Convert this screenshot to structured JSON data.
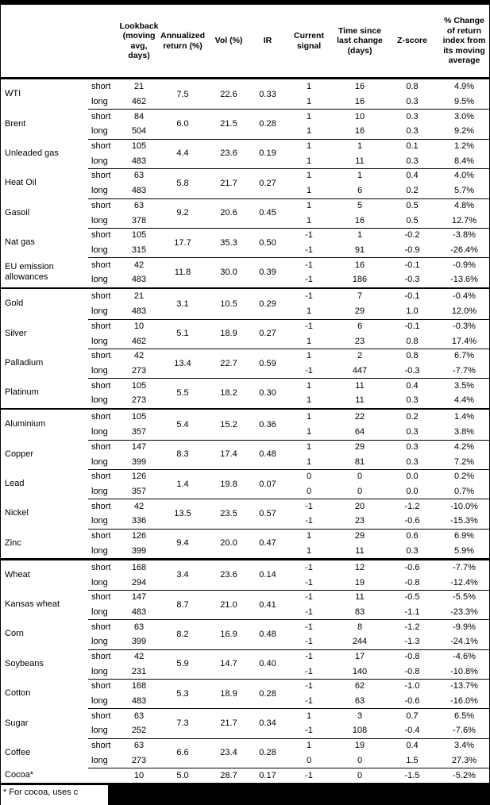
{
  "header": {
    "columns": [
      "Lookback (moving avg, days)",
      "Annualized return (%)",
      "Vol (%)",
      "IR",
      "Current signal",
      "Time since last change (days)",
      "Z-score",
      "% Change of return index from its moving average"
    ]
  },
  "table": {
    "groups": [
      {
        "commodities": [
          {
            "name": "WTI",
            "annualized": "7.5",
            "vol": "22.6",
            "ir": "0.33",
            "rows": [
              {
                "label": "short",
                "lookback": "21",
                "signal": "1",
                "days": "16",
                "zscore": "0.8",
                "pct_change": "4.9%"
              },
              {
                "label": "long",
                "lookback": "462",
                "signal": "1",
                "days": "16",
                "zscore": "0.3",
                "pct_change": "9.5%"
              }
            ]
          },
          {
            "name": "Brent",
            "annualized": "6.0",
            "vol": "21.5",
            "ir": "0.28",
            "rows": [
              {
                "label": "short",
                "lookback": "84",
                "signal": "1",
                "days": "10",
                "zscore": "0.3",
                "pct_change": "3.0%"
              },
              {
                "label": "long",
                "lookback": "504",
                "signal": "1",
                "days": "16",
                "zscore": "0.3",
                "pct_change": "9.2%"
              }
            ]
          },
          {
            "name": "Unleaded gas",
            "annualized": "4.4",
            "vol": "23.6",
            "ir": "0.19",
            "rows": [
              {
                "label": "short",
                "lookback": "105",
                "signal": "1",
                "days": "1",
                "zscore": "0.1",
                "pct_change": "1.2%"
              },
              {
                "label": "long",
                "lookback": "483",
                "signal": "1",
                "days": "11",
                "zscore": "0.3",
                "pct_change": "8.4%"
              }
            ]
          },
          {
            "name": "Heat Oil",
            "annualized": "5.8",
            "vol": "21.7",
            "ir": "0.27",
            "rows": [
              {
                "label": "short",
                "lookback": "63",
                "signal": "1",
                "days": "1",
                "zscore": "0.4",
                "pct_change": "4.0%"
              },
              {
                "label": "long",
                "lookback": "483",
                "signal": "1",
                "days": "6",
                "zscore": "0.2",
                "pct_change": "5.7%"
              }
            ]
          },
          {
            "name": "Gasoil",
            "annualized": "9.2",
            "vol": "20.6",
            "ir": "0.45",
            "rows": [
              {
                "label": "short",
                "lookback": "63",
                "signal": "1",
                "days": "5",
                "zscore": "0.5",
                "pct_change": "4.8%"
              },
              {
                "label": "long",
                "lookback": "378",
                "signal": "1",
                "days": "16",
                "zscore": "0.5",
                "pct_change": "12.7%"
              }
            ]
          },
          {
            "name": "Nat gas",
            "annualized": "17.7",
            "vol": "35.3",
            "ir": "0.50",
            "rows": [
              {
                "label": "short",
                "lookback": "105",
                "signal": "-1",
                "days": "1",
                "zscore": "-0.2",
                "pct_change": "-3.8%"
              },
              {
                "label": "long",
                "lookback": "315",
                "signal": "-1",
                "days": "91",
                "zscore": "-0.9",
                "pct_change": "-26.4%"
              }
            ]
          },
          {
            "name": "EU emission allowances",
            "annualized": "11.8",
            "vol": "30.0",
            "ir": "0.39",
            "rows": [
              {
                "label": "short",
                "lookback": "42",
                "signal": "-1",
                "days": "16",
                "zscore": "-0.1",
                "pct_change": "-0.9%"
              },
              {
                "label": "long",
                "lookback": "483",
                "signal": "-1",
                "days": "186",
                "zscore": "-0.3",
                "pct_change": "-13.6%"
              }
            ]
          }
        ]
      },
      {
        "commodities": [
          {
            "name": "Gold",
            "annualized": "3.1",
            "vol": "10.5",
            "ir": "0.29",
            "rows": [
              {
                "label": "short",
                "lookback": "21",
                "signal": "-1",
                "days": "7",
                "zscore": "-0.1",
                "pct_change": "-0.4%"
              },
              {
                "label": "long",
                "lookback": "483",
                "signal": "1",
                "days": "29",
                "zscore": "1.0",
                "pct_change": "12.0%"
              }
            ]
          },
          {
            "name": "Silver",
            "annualized": "5.1",
            "vol": "18.9",
            "ir": "0.27",
            "rows": [
              {
                "label": "short",
                "lookback": "10",
                "signal": "-1",
                "days": "6",
                "zscore": "-0.1",
                "pct_change": "-0.3%"
              },
              {
                "label": "long",
                "lookback": "462",
                "signal": "1",
                "days": "23",
                "zscore": "0.8",
                "pct_change": "17.4%"
              }
            ]
          },
          {
            "name": "Palladium",
            "annualized": "13.4",
            "vol": "22.7",
            "ir": "0.59",
            "rows": [
              {
                "label": "short",
                "lookback": "42",
                "signal": "1",
                "days": "2",
                "zscore": "0.8",
                "pct_change": "6.7%"
              },
              {
                "label": "long",
                "lookback": "273",
                "signal": "-1",
                "days": "447",
                "zscore": "-0.3",
                "pct_change": "-7.7%"
              }
            ]
          },
          {
            "name": "Platinum",
            "annualized": "5.5",
            "vol": "18.2",
            "ir": "0.30",
            "rows": [
              {
                "label": "short",
                "lookback": "105",
                "signal": "1",
                "days": "11",
                "zscore": "0.4",
                "pct_change": "3.5%"
              },
              {
                "label": "long",
                "lookback": "273",
                "signal": "1",
                "days": "11",
                "zscore": "0.3",
                "pct_change": "4.4%"
              }
            ]
          }
        ]
      },
      {
        "commodities": [
          {
            "name": "Aluminium",
            "annualized": "5.4",
            "vol": "15.2",
            "ir": "0.36",
            "rows": [
              {
                "label": "short",
                "lookback": "105",
                "signal": "1",
                "days": "22",
                "zscore": "0.2",
                "pct_change": "1.4%"
              },
              {
                "label": "long",
                "lookback": "357",
                "signal": "1",
                "days": "64",
                "zscore": "0.3",
                "pct_change": "3.8%"
              }
            ]
          },
          {
            "name": "Copper",
            "annualized": "8.3",
            "vol": "17.4",
            "ir": "0.48",
            "rows": [
              {
                "label": "short",
                "lookback": "147",
                "signal": "1",
                "days": "29",
                "zscore": "0.3",
                "pct_change": "4.2%"
              },
              {
                "label": "long",
                "lookback": "399",
                "signal": "1",
                "days": "81",
                "zscore": "0.3",
                "pct_change": "7.2%"
              }
            ]
          },
          {
            "name": "Lead",
            "annualized": "1.4",
            "vol": "19.8",
            "ir": "0.07",
            "rows": [
              {
                "label": "short",
                "lookback": "126",
                "signal": "0",
                "days": "0",
                "zscore": "0.0",
                "pct_change": "0.2%"
              },
              {
                "label": "long",
                "lookback": "357",
                "signal": "0",
                "days": "0",
                "zscore": "0.0",
                "pct_change": "0.7%"
              }
            ]
          },
          {
            "name": "Nickel",
            "annualized": "13.5",
            "vol": "23.5",
            "ir": "0.57",
            "rows": [
              {
                "label": "short",
                "lookback": "42",
                "signal": "-1",
                "days": "20",
                "zscore": "-1.2",
                "pct_change": "-10.0%"
              },
              {
                "label": "long",
                "lookback": "336",
                "signal": "-1",
                "days": "23",
                "zscore": "-0.6",
                "pct_change": "-15.3%"
              }
            ]
          },
          {
            "name": "Zinc",
            "annualized": "9.4",
            "vol": "20.0",
            "ir": "0.47",
            "rows": [
              {
                "label": "short",
                "lookback": "126",
                "signal": "1",
                "days": "29",
                "zscore": "0.6",
                "pct_change": "6.9%"
              },
              {
                "label": "long",
                "lookback": "399",
                "signal": "1",
                "days": "11",
                "zscore": "0.3",
                "pct_change": "5.9%"
              }
            ]
          }
        ]
      },
      {
        "commodities": [
          {
            "name": "Wheat",
            "annualized": "3.4",
            "vol": "23.6",
            "ir": "0.14",
            "rows": [
              {
                "label": "short",
                "lookback": "168",
                "signal": "-1",
                "days": "12",
                "zscore": "-0.6",
                "pct_change": "-7.7%"
              },
              {
                "label": "long",
                "lookback": "294",
                "signal": "-1",
                "days": "19",
                "zscore": "-0.8",
                "pct_change": "-12.4%"
              }
            ]
          },
          {
            "name": "Kansas wheat",
            "annualized": "8.7",
            "vol": "21.0",
            "ir": "0.41",
            "rows": [
              {
                "label": "short",
                "lookback": "147",
                "signal": "-1",
                "days": "11",
                "zscore": "-0.5",
                "pct_change": "-5.5%"
              },
              {
                "label": "long",
                "lookback": "483",
                "signal": "-1",
                "days": "83",
                "zscore": "-1.1",
                "pct_change": "-23.3%"
              }
            ]
          },
          {
            "name": "Corn",
            "annualized": "8.2",
            "vol": "16.9",
            "ir": "0.48",
            "rows": [
              {
                "label": "short",
                "lookback": "63",
                "signal": "-1",
                "days": "8",
                "zscore": "-1.2",
                "pct_change": "-9.9%"
              },
              {
                "label": "long",
                "lookback": "399",
                "signal": "-1",
                "days": "244",
                "zscore": "-1.3",
                "pct_change": "-24.1%"
              }
            ]
          },
          {
            "name": "Soybeans",
            "annualized": "5.9",
            "vol": "14.7",
            "ir": "0.40",
            "rows": [
              {
                "label": "short",
                "lookback": "42",
                "signal": "-1",
                "days": "17",
                "zscore": "-0.8",
                "pct_change": "-4.6%"
              },
              {
                "label": "long",
                "lookback": "231",
                "signal": "-1",
                "days": "140",
                "zscore": "-0.8",
                "pct_change": "-10.8%"
              }
            ]
          },
          {
            "name": "Cotton",
            "annualized": "5.3",
            "vol": "18.9",
            "ir": "0.28",
            "rows": [
              {
                "label": "short",
                "lookback": "168",
                "signal": "-1",
                "days": "62",
                "zscore": "-1.0",
                "pct_change": "-13.7%"
              },
              {
                "label": "long",
                "lookback": "483",
                "signal": "-1",
                "days": "63",
                "zscore": "-0.6",
                "pct_change": "-16.0%"
              }
            ]
          },
          {
            "name": "Sugar",
            "annualized": "7.3",
            "vol": "21.7",
            "ir": "0.34",
            "rows": [
              {
                "label": "short",
                "lookback": "63",
                "signal": "1",
                "days": "3",
                "zscore": "0.7",
                "pct_change": "6.5%"
              },
              {
                "label": "long",
                "lookback": "252",
                "signal": "-1",
                "days": "108",
                "zscore": "-0.4",
                "pct_change": "-7.6%"
              }
            ]
          },
          {
            "name": "Coffee",
            "annualized": "6.6",
            "vol": "23.4",
            "ir": "0.28",
            "rows": [
              {
                "label": "short",
                "lookback": "63",
                "signal": "1",
                "days": "19",
                "zscore": "0.4",
                "pct_change": "3.4%"
              },
              {
                "label": "long",
                "lookback": "273",
                "signal": "0",
                "days": "0",
                "zscore": "1.5",
                "pct_change": "27.3%"
              }
            ]
          },
          {
            "name": "Cocoa*",
            "annualized": "5.0",
            "vol": "28.7",
            "ir": "0.17",
            "rows": [
              {
                "label": "",
                "lookback": "10",
                "signal": "-1",
                "days": "0",
                "zscore": "-1.5",
                "pct_change": "-5.2%"
              }
            ]
          }
        ]
      }
    ]
  },
  "footnote": {
    "text": "* For cocoa, uses c"
  }
}
